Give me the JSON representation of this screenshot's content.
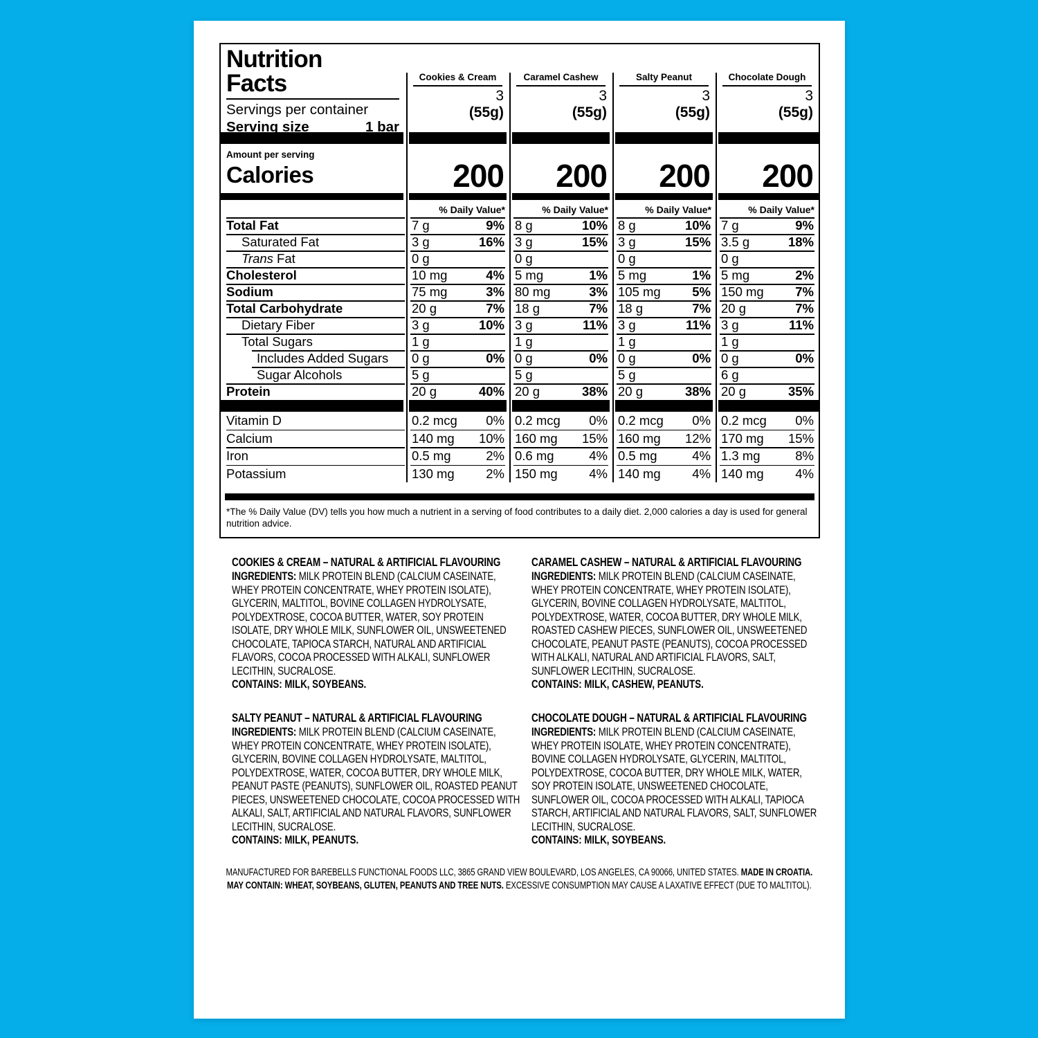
{
  "colors": {
    "background": "#05AEE9",
    "panel": "#FFFFFF",
    "text": "#000000"
  },
  "nutrition_panel": {
    "title_line1": "Nutrition",
    "title_line2": "Facts",
    "servings_per_container_label": "Servings per container",
    "serving_size_label": "Serving size",
    "serving_size_value": "1 bar",
    "amount_per_serving_label": "Amount per serving",
    "calories_label": "Calories",
    "daily_value_header": "% Daily Value*",
    "flavors": [
      {
        "name": "Cookies & Cream",
        "servings_per_container": "3",
        "serving_weight": "(55g)",
        "calories": "200"
      },
      {
        "name": "Caramel Cashew",
        "servings_per_container": "3",
        "serving_weight": "(55g)",
        "calories": "200"
      },
      {
        "name": "Salty Peanut",
        "servings_per_container": "3",
        "serving_weight": "(55g)",
        "calories": "200"
      },
      {
        "name": "Chocolate Dough",
        "servings_per_container": "3",
        "serving_weight": "(55g)",
        "calories": "200"
      }
    ],
    "nutrient_rows": [
      {
        "label": "Total Fat",
        "bold": true,
        "indent": 0,
        "values": [
          {
            "amount": "7 g",
            "dv": "9%"
          },
          {
            "amount": "8 g",
            "dv": "10%"
          },
          {
            "amount": "8 g",
            "dv": "10%"
          },
          {
            "amount": "7 g",
            "dv": "9%"
          }
        ]
      },
      {
        "label": "Saturated Fat",
        "bold": false,
        "indent": 1,
        "values": [
          {
            "amount": "3 g",
            "dv": "16%"
          },
          {
            "amount": "3 g",
            "dv": "15%"
          },
          {
            "amount": "3 g",
            "dv": "15%"
          },
          {
            "amount": "3.5 g",
            "dv": "18%"
          }
        ]
      },
      {
        "label_italic": "Trans",
        "label": " Fat",
        "bold": false,
        "indent": 1,
        "values": [
          {
            "amount": "0 g",
            "dv": ""
          },
          {
            "amount": "0 g",
            "dv": ""
          },
          {
            "amount": "0 g",
            "dv": ""
          },
          {
            "amount": "0 g",
            "dv": ""
          }
        ]
      },
      {
        "label": "Cholesterol",
        "bold": true,
        "indent": 0,
        "values": [
          {
            "amount": "10 mg",
            "dv": "4%"
          },
          {
            "amount": "5 mg",
            "dv": "1%"
          },
          {
            "amount": "5 mg",
            "dv": "1%"
          },
          {
            "amount": "5 mg",
            "dv": "2%"
          }
        ]
      },
      {
        "label": "Sodium",
        "bold": true,
        "indent": 0,
        "values": [
          {
            "amount": "75 mg",
            "dv": "3%"
          },
          {
            "amount": "80 mg",
            "dv": "3%"
          },
          {
            "amount": "105 mg",
            "dv": "5%"
          },
          {
            "amount": "150 mg",
            "dv": "7%"
          }
        ]
      },
      {
        "label": "Total Carbohydrate",
        "bold": true,
        "indent": 0,
        "values": [
          {
            "amount": "20 g",
            "dv": "7%"
          },
          {
            "amount": "18 g",
            "dv": "7%"
          },
          {
            "amount": "18 g",
            "dv": "7%"
          },
          {
            "amount": "20 g",
            "dv": "7%"
          }
        ]
      },
      {
        "label": "Dietary Fiber",
        "bold": false,
        "indent": 1,
        "values": [
          {
            "amount": "3 g",
            "dv": "10%"
          },
          {
            "amount": "3 g",
            "dv": "11%"
          },
          {
            "amount": "3 g",
            "dv": "11%"
          },
          {
            "amount": "3 g",
            "dv": "11%"
          }
        ]
      },
      {
        "label": "Total Sugars",
        "bold": false,
        "indent": 1,
        "values": [
          {
            "amount": "1 g",
            "dv": ""
          },
          {
            "amount": "1 g",
            "dv": ""
          },
          {
            "amount": "1 g",
            "dv": ""
          },
          {
            "amount": "1 g",
            "dv": ""
          }
        ]
      },
      {
        "label": "Includes Added Sugars",
        "bold": false,
        "indent": 2,
        "values": [
          {
            "amount": "0 g",
            "dv": "0%"
          },
          {
            "amount": "0 g",
            "dv": "0%"
          },
          {
            "amount": "0 g",
            "dv": "0%"
          },
          {
            "amount": "0 g",
            "dv": "0%"
          }
        ]
      },
      {
        "label": "Sugar Alcohols",
        "bold": false,
        "indent": 2,
        "values": [
          {
            "amount": "5 g",
            "dv": ""
          },
          {
            "amount": "5 g",
            "dv": ""
          },
          {
            "amount": "5 g",
            "dv": ""
          },
          {
            "amount": "6 g",
            "dv": ""
          }
        ]
      },
      {
        "label": "Protein",
        "bold": true,
        "indent": 0,
        "values": [
          {
            "amount": "20 g",
            "dv": "40%"
          },
          {
            "amount": "20 g",
            "dv": "38%"
          },
          {
            "amount": "20 g",
            "dv": "38%"
          },
          {
            "amount": "20 g",
            "dv": "35%"
          }
        ]
      }
    ],
    "micro_rows": [
      {
        "label": "Vitamin D",
        "values": [
          {
            "amount": "0.2 mcg",
            "dv": "0%"
          },
          {
            "amount": "0.2 mcg",
            "dv": "0%"
          },
          {
            "amount": "0.2 mcg",
            "dv": "0%"
          },
          {
            "amount": "0.2 mcg",
            "dv": "0%"
          }
        ]
      },
      {
        "label": "Calcium",
        "values": [
          {
            "amount": "140 mg",
            "dv": "10%"
          },
          {
            "amount": "160 mg",
            "dv": "15%"
          },
          {
            "amount": "160 mg",
            "dv": "12%"
          },
          {
            "amount": "170 mg",
            "dv": "15%"
          }
        ]
      },
      {
        "label": "Iron",
        "values": [
          {
            "amount": "0.5 mg",
            "dv": "2%"
          },
          {
            "amount": "0.6 mg",
            "dv": "4%"
          },
          {
            "amount": "0.5 mg",
            "dv": "4%"
          },
          {
            "amount": "1.3 mg",
            "dv": "8%"
          }
        ]
      },
      {
        "label": "Potassium",
        "values": [
          {
            "amount": "130 mg",
            "dv": "2%"
          },
          {
            "amount": "150 mg",
            "dv": "4%"
          },
          {
            "amount": "140 mg",
            "dv": "4%"
          },
          {
            "amount": "140 mg",
            "dv": "4%"
          }
        ]
      }
    ],
    "footnote": "*The % Daily Value (DV) tells you how much a nutrient in a serving of food contributes to a daily diet. 2,000 calories a day is used for general nutrition advice."
  },
  "ingredients_blocks": [
    {
      "title": "COOKIES & CREAM – NATURAL & ARTIFICIAL FLAVOURING",
      "ingredients_label": "INGREDIENTS:",
      "ingredients_text": "MILK PROTEIN BLEND (CALCIUM CASEINATE, WHEY PROTEIN CONCENTRATE, WHEY PROTEIN ISOLATE), GLYCERIN, MALTITOL, BOVINE COLLAGEN HYDROLYSATE, POLYDEXTROSE, COCOA BUTTER, WATER, SOY PROTEIN ISOLATE, DRY WHOLE MILK, SUNFLOWER OIL, UNSWEETENED CHOCOLATE, TAPIOCA STARCH, NATURAL AND ARTIFICIAL FLAVORS, COCOA PROCESSED WITH ALKALI, SUNFLOWER LECITHIN, SUCRALOSE.",
      "contains": "CONTAINS: MILK, SOYBEANS."
    },
    {
      "title": "CARAMEL CASHEW – NATURAL & ARTIFICIAL FLAVOURING",
      "ingredients_label": "INGREDIENTS:",
      "ingredients_text": "MILK PROTEIN BLEND (CALCIUM CASEINATE, WHEY PROTEIN CONCENTRATE, WHEY PROTEIN ISOLATE), GLYCERIN, BOVINE COLLAGEN HYDROLYSATE, MALTITOL, POLYDEXTROSE, WATER, COCOA BUTTER, DRY WHOLE MILK, ROASTED CASHEW PIECES, SUNFLOWER OIL, UNSWEETENED CHOCOLATE, PEANUT PASTE (PEANUTS), COCOA PROCESSED WITH ALKALI, NATURAL AND ARTIFICIAL FLAVORS, SALT, SUNFLOWER LECITHIN, SUCRALOSE.",
      "contains": "CONTAINS: MILK, CASHEW, PEANUTS."
    },
    {
      "title": "SALTY PEANUT – NATURAL & ARTIFICIAL FLAVOURING",
      "ingredients_label": "INGREDIENTS:",
      "ingredients_text": "MILK PROTEIN BLEND (CALCIUM CASEINATE, WHEY PROTEIN CONCENTRATE, WHEY PROTEIN ISOLATE), GLYCERIN, BOVINE COLLAGEN HYDROLYSATE, MALTITOL, POLYDEXTROSE, WATER, COCOA BUTTER, DRY WHOLE MILK, PEANUT PASTE (PEANUTS), SUNFLOWER OIL, ROASTED PEANUT PIECES, UNSWEETENED CHOCOLATE, COCOA PROCESSED WITH ALKALI, SALT, ARTIFICIAL AND NATURAL FLAVORS, SUNFLOWER LECITHIN, SUCRALOSE.",
      "contains": "CONTAINS: MILK, PEANUTS."
    },
    {
      "title": "CHOCOLATE DOUGH – NATURAL & ARTIFICIAL FLAVOURING",
      "ingredients_label": "INGREDIENTS:",
      "ingredients_text": "MILK PROTEIN BLEND (CALCIUM CASEINATE, WHEY PROTEIN ISOLATE, WHEY PROTEIN CONCENTRATE), BOVINE COLLAGEN HYDROLYSATE, GLYCERIN, MALTITOL, POLYDEXTROSE, COCOA BUTTER, DRY WHOLE MILK, WATER, SOY PROTEIN ISOLATE, UNSWEETENED CHOCOLATE, SUNFLOWER OIL, COCOA PROCESSED WITH ALKALI, TAPIOCA STARCH, ARTIFICIAL AND NATURAL FLAVORS, SALT, SUNFLOWER LECITHIN, SUCRALOSE.",
      "contains": "CONTAINS: MILK, SOYBEANS."
    }
  ],
  "footer": {
    "line1_text": "MANUFACTURED FOR BAREBELLS FUNCTIONAL FOODS LLC, 3865 GRAND VIEW BOULEVARD, LOS ANGELES, CA 90066, UNITED STATES. ",
    "line1_bold": "MADE IN CROATIA.",
    "line2_bold": "MAY CONTAIN: WHEAT, SOYBEANS, GLUTEN, PEANUTS AND TREE NUTS.",
    "line2_text": " EXCESSIVE CONSUMPTION MAY CAUSE A LAXATIVE EFFECT (DUE TO MALTITOL)."
  }
}
